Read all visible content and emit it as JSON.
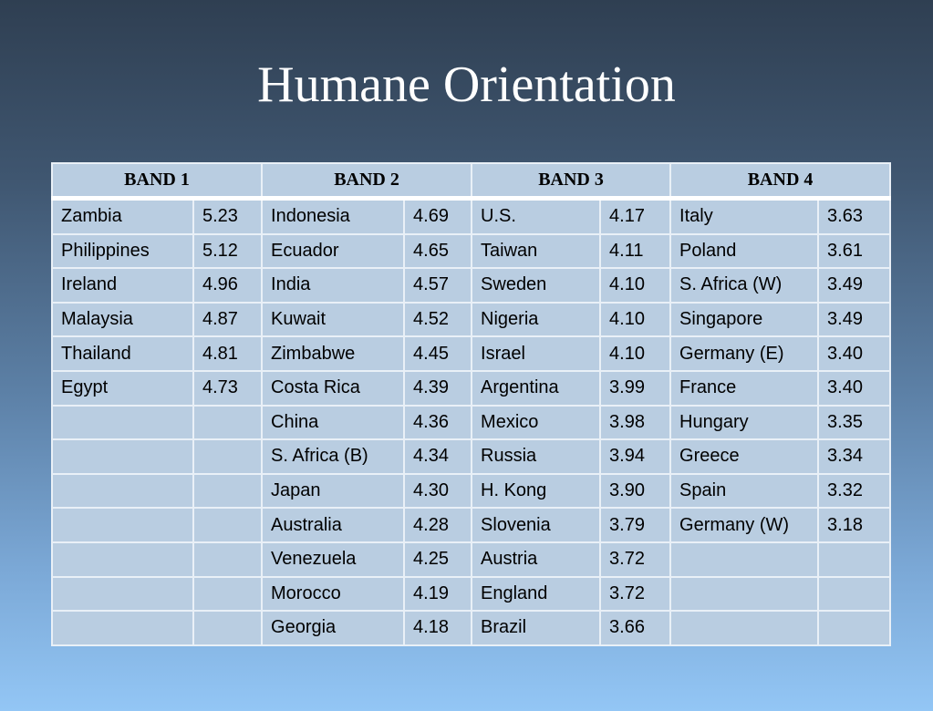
{
  "title": "Humane Orientation",
  "table": {
    "headers": [
      "BAND 1",
      "BAND 2",
      "BAND 3",
      "BAND 4"
    ],
    "bands": [
      [
        [
          "Zambia",
          "5.23"
        ],
        [
          "Philippines",
          "5.12"
        ],
        [
          "Ireland",
          "4.96"
        ],
        [
          "Malaysia",
          "4.87"
        ],
        [
          "Thailand",
          "4.81"
        ],
        [
          "Egypt",
          "4.73"
        ]
      ],
      [
        [
          "Indonesia",
          "4.69"
        ],
        [
          "Ecuador",
          "4.65"
        ],
        [
          "India",
          "4.57"
        ],
        [
          "Kuwait",
          "4.52"
        ],
        [
          "Zimbabwe",
          "4.45"
        ],
        [
          "Costa Rica",
          "4.39"
        ],
        [
          "China",
          "4.36"
        ],
        [
          "S. Africa (B)",
          "4.34"
        ],
        [
          "Japan",
          "4.30"
        ],
        [
          "Australia",
          "4.28"
        ],
        [
          "Venezuela",
          "4.25"
        ],
        [
          "Morocco",
          "4.19"
        ],
        [
          "Georgia",
          "4.18"
        ]
      ],
      [
        [
          "U.S.",
          "4.17"
        ],
        [
          "Taiwan",
          "4.11"
        ],
        [
          "Sweden",
          "4.10"
        ],
        [
          "Nigeria",
          "4.10"
        ],
        [
          "Israel",
          "4.10"
        ],
        [
          "Argentina",
          "3.99"
        ],
        [
          "Mexico",
          "3.98"
        ],
        [
          "Russia",
          "3.94"
        ],
        [
          "H. Kong",
          "3.90"
        ],
        [
          "Slovenia",
          "3.79"
        ],
        [
          "Austria",
          "3.72"
        ],
        [
          "England",
          "3.72"
        ],
        [
          "Brazil",
          "3.66"
        ]
      ],
      [
        [
          "Italy",
          "3.63"
        ],
        [
          "Poland",
          "3.61"
        ],
        [
          "S. Africa (W)",
          "3.49"
        ],
        [
          "Singapore",
          "3.49"
        ],
        [
          "Germany (E)",
          "3.40"
        ],
        [
          "France",
          "3.40"
        ],
        [
          "Hungary",
          "3.35"
        ],
        [
          "Greece",
          "3.34"
        ],
        [
          "Spain",
          "3.32"
        ],
        [
          "Germany (W)",
          "3.18"
        ]
      ]
    ]
  },
  "colors": {
    "cell": "#b9cde1",
    "border": "#e9f0f7",
    "title": "#ffffff"
  }
}
